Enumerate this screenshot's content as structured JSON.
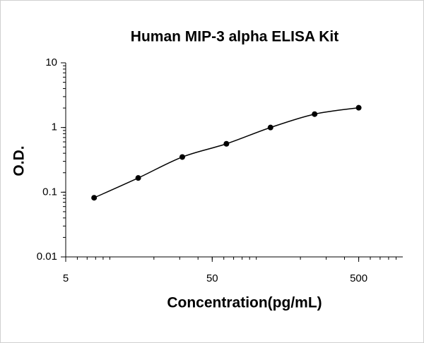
{
  "chart_data": {
    "type": "scatter",
    "title": "Human MIP-3 alpha ELISA Kit",
    "x_label": "Concentration(pg/mL)",
    "y_label": "O.D.",
    "x": [
      7.8125,
      15.625,
      31.25,
      62.5,
      125,
      250,
      500
    ],
    "values": [
      0.082,
      0.166,
      0.35,
      0.56,
      1.0,
      1.61,
      2.02
    ],
    "color": "#000000",
    "x_log": true,
    "y_log": true,
    "xlim": [
      5,
      1000
    ],
    "xticks": [
      5,
      50,
      500
    ],
    "ylim": [
      0.01,
      10
    ],
    "yticks": [
      0.01,
      0.1,
      1,
      10
    ]
  }
}
